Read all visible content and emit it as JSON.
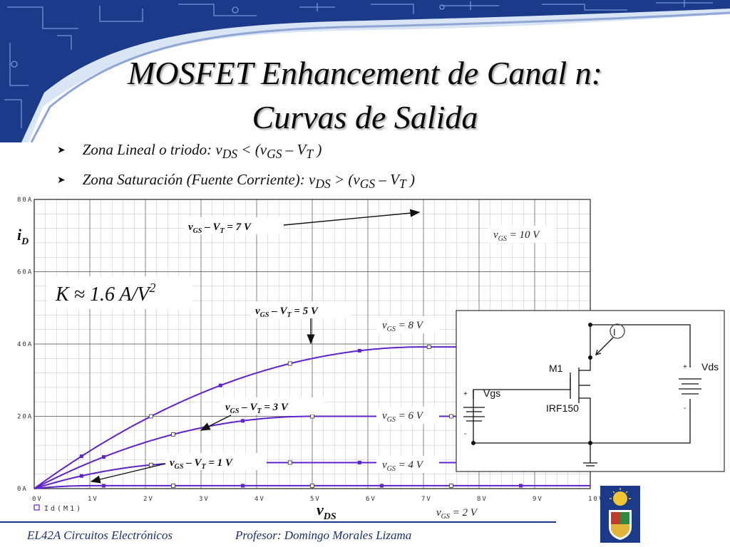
{
  "slide": {
    "title_line1": "MOSFET Enhancement de Canal n:",
    "title_line2": "Curvas de Salida",
    "bullets": [
      {
        "text": "Zona Lineal o triodo: v",
        "s1": "DS",
        "op": " < (v",
        "s2": "GS",
        "mid": " – V",
        "s3": "T",
        "end": " )"
      },
      {
        "text": "Zona Saturación (Fuente Corriente): v",
        "s1": "DS",
        "op": " > (v",
        "s2": "GS",
        "mid": " – V",
        "s3": "T",
        "end": " )"
      }
    ],
    "footer_left": "EL42A Circuitos Electrónicos",
    "footer_right": "Profesor: Domingo Morales Lizama"
  },
  "colors": {
    "curve": "#5e22c9",
    "grid": "#555555",
    "accent_blue": "#1b3b8a"
  },
  "chart_data": {
    "type": "line",
    "x_ticks": [
      "0V",
      "1V",
      "2V",
      "3V",
      "4V",
      "5V",
      "6V",
      "7V",
      "8V",
      "9V",
      "10V"
    ],
    "y_ticks": [
      "0A",
      "20A",
      "40A",
      "60A",
      "80A"
    ],
    "xlim": [
      0,
      10
    ],
    "ylim": [
      0,
      80
    ],
    "xlabel": "v",
    "xlabel_sub": "DS",
    "ylabel": "i",
    "ylabel_sub": "D",
    "legend_text": "Id(M1)",
    "k_text": "K ≈ 1.6 A/V",
    "k_sup": "2",
    "grid": true,
    "k_factor": 1.6,
    "series": [
      {
        "vov": 1,
        "label_vgs": "v",
        "sub": "GS",
        "rest": " = 2 V"
      },
      {
        "vov": 3,
        "label_vgs": "v",
        "sub": "GS",
        "rest": " = 4 V"
      },
      {
        "vov": 5,
        "label_vgs": "v",
        "sub": "GS",
        "rest": " = 6 V"
      },
      {
        "vov": 7,
        "label_vgs": "v",
        "sub": "GS",
        "rest": " = 8 V"
      }
    ],
    "series_labels_extra": [
      {
        "label": "v",
        "sub": "GS",
        "rest": " = 10 V"
      }
    ],
    "callouts": [
      {
        "pre": "v",
        "sub1": "GS",
        "mid": " – V",
        "sub2": "T",
        "post": " = 7 V"
      },
      {
        "pre": "v",
        "sub1": "GS",
        "mid": " – V",
        "sub2": "T",
        "post": " = 5 V"
      },
      {
        "pre": "v",
        "sub1": "GS",
        "mid": " – V",
        "sub2": "T",
        "post": " = 3 V"
      },
      {
        "pre": "v",
        "sub1": "GS",
        "mid": " – V",
        "sub2": "T",
        "post": " = 1 V"
      }
    ]
  },
  "circuit": {
    "transistor_name": "M1",
    "transistor_part": "IRF150",
    "source_left": "Vgs",
    "source_right": "Vds",
    "probe": "I",
    "plus": "+",
    "minus": "-"
  }
}
